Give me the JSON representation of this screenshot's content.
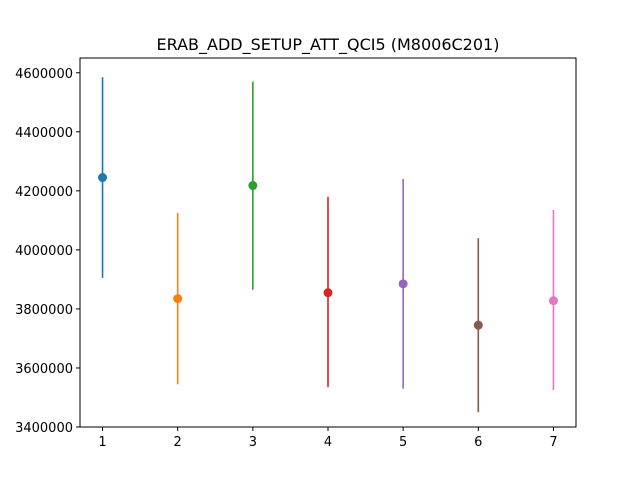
{
  "chart_data": {
    "type": "scatter",
    "title": "ERAB_ADD_SETUP_ATT_QCI5 (M8006C201)",
    "xlabel": "",
    "ylabel": "",
    "xlim": [
      0.7,
      7.3
    ],
    "ylim": [
      3400000,
      4650000
    ],
    "x_ticks": [
      1,
      2,
      3,
      4,
      5,
      6,
      7
    ],
    "y_ticks": [
      3400000,
      3600000,
      3800000,
      4000000,
      4200000,
      4400000,
      4600000
    ],
    "y_tick_labels": [
      "3400000",
      "3600000",
      "3800000",
      "4000000",
      "4200000",
      "4400000",
      "4600000"
    ],
    "x_tick_labels": [
      "1",
      "2",
      "3",
      "4",
      "5",
      "6",
      "7"
    ],
    "grid": false,
    "points": [
      {
        "x": 1,
        "y": 4245000,
        "err_low": 3905000,
        "err_high": 4585000,
        "color": "#1f77b4"
      },
      {
        "x": 2,
        "y": 3835000,
        "err_low": 3545000,
        "err_high": 4125000,
        "color": "#ff7f0e"
      },
      {
        "x": 3,
        "y": 4218000,
        "err_low": 3865000,
        "err_high": 4570000,
        "color": "#2ca02c"
      },
      {
        "x": 4,
        "y": 3855000,
        "err_low": 3535000,
        "err_high": 4180000,
        "color": "#d62728"
      },
      {
        "x": 5,
        "y": 3885000,
        "err_low": 3530000,
        "err_high": 4240000,
        "color": "#9467bd"
      },
      {
        "x": 6,
        "y": 3745000,
        "err_low": 3450000,
        "err_high": 4040000,
        "color": "#8c564b"
      },
      {
        "x": 7,
        "y": 3828000,
        "err_low": 3525000,
        "err_high": 4135000,
        "color": "#e377c2"
      }
    ]
  }
}
